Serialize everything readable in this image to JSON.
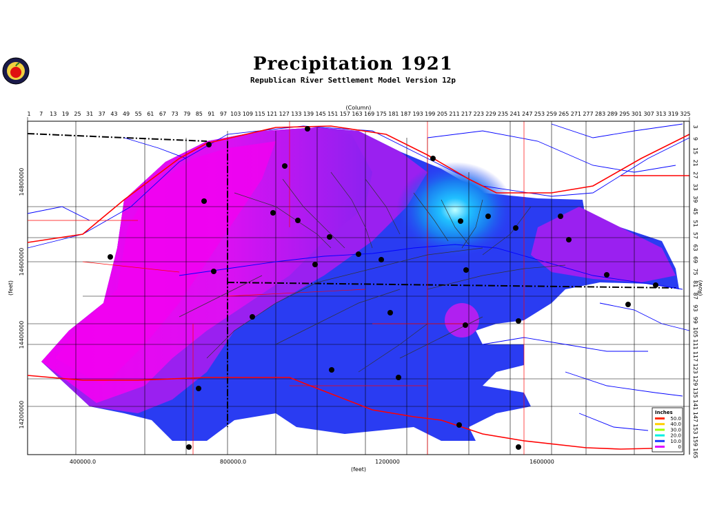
{
  "title": "Precipitation 1921",
  "subtitle": "Republican River Settlement Model Version 12p",
  "logo": {
    "icon": "apple-seal-icon"
  },
  "axes": {
    "column_label": "(Column)",
    "row_label": "(Row)",
    "x_label": "(feet)",
    "y_label": "(feet)",
    "column_ticks": [
      "1",
      "7",
      "13",
      "19",
      "25",
      "31",
      "37",
      "43",
      "49",
      "55",
      "61",
      "67",
      "73",
      "79",
      "85",
      "91",
      "97",
      "103",
      "109",
      "115",
      "121",
      "127",
      "133",
      "139",
      "145",
      "151",
      "157",
      "163",
      "169",
      "175",
      "181",
      "187",
      "193",
      "199",
      "205",
      "211",
      "217",
      "223",
      "229",
      "235",
      "241",
      "247",
      "253",
      "259",
      "265",
      "271",
      "277",
      "283",
      "289",
      "295",
      "301",
      "307",
      "313",
      "319",
      "325"
    ],
    "row_ticks": [
      "3",
      "9",
      "15",
      "21",
      "27",
      "33",
      "39",
      "45",
      "51",
      "57",
      "63",
      "69",
      "75",
      "81",
      "87",
      "93",
      "99",
      "105",
      "111",
      "117",
      "123",
      "129",
      "135",
      "141",
      "147",
      "153",
      "159",
      "165"
    ],
    "x_ticks": [
      "400000.0",
      "800000.0",
      "1200000",
      "1600000"
    ],
    "y_ticks": [
      "14800000",
      "14600000",
      "14400000",
      "14200000"
    ]
  },
  "legend": {
    "title": "Inches",
    "entries": [
      {
        "label": "50.0",
        "color": "#ff2a00"
      },
      {
        "label": "40.0",
        "color": "#ffd000"
      },
      {
        "label": "30.0",
        "color": "#a0ff00"
      },
      {
        "label": "20.0",
        "color": "#00f0e0"
      },
      {
        "label": "10.0",
        "color": "#1a3cff"
      },
      {
        "label": "0",
        "color": "#e000ff"
      }
    ]
  },
  "colors": {
    "magenta": "#ee00f2",
    "purple": "#9a20f0",
    "blue": "#2a3cf2",
    "light_blue": "#1a9af0",
    "cyan": "#80f0ff",
    "river": "#0000ff",
    "road": "#ff0000",
    "county": "#000000"
  }
}
